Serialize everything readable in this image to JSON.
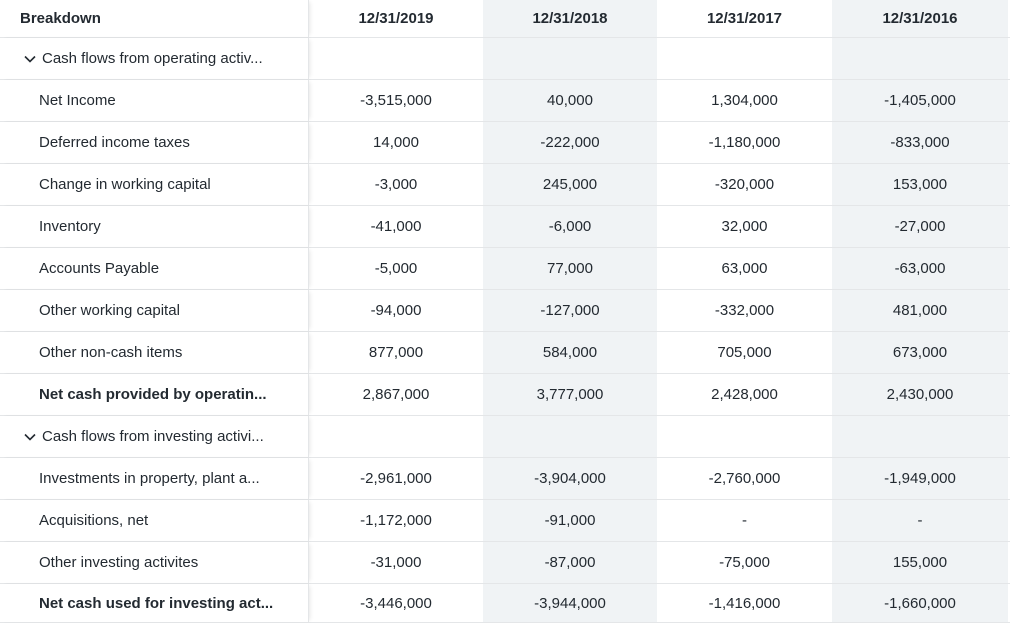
{
  "header": {
    "breakdown": "Breakdown",
    "dates": [
      "12/31/2019",
      "12/31/2018",
      "12/31/2017",
      "12/31/2016"
    ]
  },
  "rows": [
    {
      "label": "Cash flows from operating activ...",
      "values": [
        "",
        "",
        "",
        ""
      ]
    },
    {
      "label": "Net Income",
      "values": [
        "-3,515,000",
        "40,000",
        "1,304,000",
        "-1,405,000"
      ]
    },
    {
      "label": "Deferred income taxes",
      "values": [
        "14,000",
        "-222,000",
        "-1,180,000",
        "-833,000"
      ]
    },
    {
      "label": "Change in working capital",
      "values": [
        "-3,000",
        "245,000",
        "-320,000",
        "153,000"
      ]
    },
    {
      "label": "Inventory",
      "values": [
        "-41,000",
        "-6,000",
        "32,000",
        "-27,000"
      ]
    },
    {
      "label": "Accounts Payable",
      "values": [
        "-5,000",
        "77,000",
        "63,000",
        "-63,000"
      ]
    },
    {
      "label": "Other working capital",
      "values": [
        "-94,000",
        "-127,000",
        "-332,000",
        "481,000"
      ]
    },
    {
      "label": "Other non-cash items",
      "values": [
        "877,000",
        "584,000",
        "705,000",
        "673,000"
      ]
    },
    {
      "label": "Net cash provided by operatin...",
      "values": [
        "2,867,000",
        "3,777,000",
        "2,428,000",
        "2,430,000"
      ]
    },
    {
      "label": "Cash flows from investing activi...",
      "values": [
        "",
        "",
        "",
        ""
      ]
    },
    {
      "label": "Investments in property, plant a...",
      "values": [
        "-2,961,000",
        "-3,904,000",
        "-2,760,000",
        "-1,949,000"
      ]
    },
    {
      "label": "Acquisitions, net",
      "values": [
        "-1,172,000",
        "-91,000",
        "-",
        "-"
      ]
    },
    {
      "label": "Other investing activites",
      "values": [
        "-31,000",
        "-87,000",
        "-75,000",
        "155,000"
      ]
    },
    {
      "label": "Net cash used for investing act...",
      "values": [
        "-3,446,000",
        "-3,944,000",
        "-1,416,000",
        "-1,660,000"
      ]
    }
  ],
  "icons": {
    "section_toggle": "chevron-down-icon"
  },
  "colors": {
    "alt_column_bg": "#f0f3f5",
    "border": "#e4e6e8",
    "text": "#232a31"
  }
}
